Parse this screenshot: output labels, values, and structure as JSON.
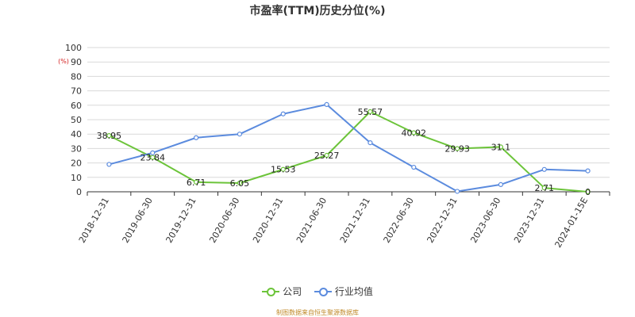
{
  "chart_data": {
    "type": "line",
    "title": "市盈率(TTM)历史分位(%)",
    "y_unit": "(%)",
    "categories": [
      "2018-12-31",
      "2019-06-30",
      "2019-12-31",
      "2020-06-30",
      "2020-12-31",
      "2021-06-30",
      "2021-12-31",
      "2022-06-30",
      "2022-12-31",
      "2023-06-30",
      "2023-12-31",
      "2024-01-15E"
    ],
    "series": [
      {
        "name": "公司",
        "color": "#6cc43a",
        "values": [
          38.95,
          23.84,
          6.71,
          6.05,
          15.53,
          25.27,
          55.57,
          40.92,
          29.93,
          31.1,
          2.71,
          0
        ],
        "labels": [
          "38.95",
          "23.84",
          "6.71",
          "6.05",
          "15.53",
          "25.27",
          "55.57",
          "40.92",
          "29.93",
          "31.1",
          "2.71",
          "0"
        ]
      },
      {
        "name": "行业均值",
        "color": "#5b8bde",
        "values": [
          19,
          27,
          37.5,
          40,
          54,
          60.5,
          34,
          17,
          0.3,
          5,
          15.5,
          14.5
        ]
      }
    ],
    "ylim": [
      0,
      100
    ],
    "yticks": [
      "0",
      "10",
      "20",
      "30",
      "40",
      "50",
      "60",
      "70",
      "80",
      "90",
      "100"
    ],
    "grid": true,
    "legend_position": "bottom-center"
  },
  "footer": {
    "source": "制图数据来自恒生聚源数据库"
  }
}
